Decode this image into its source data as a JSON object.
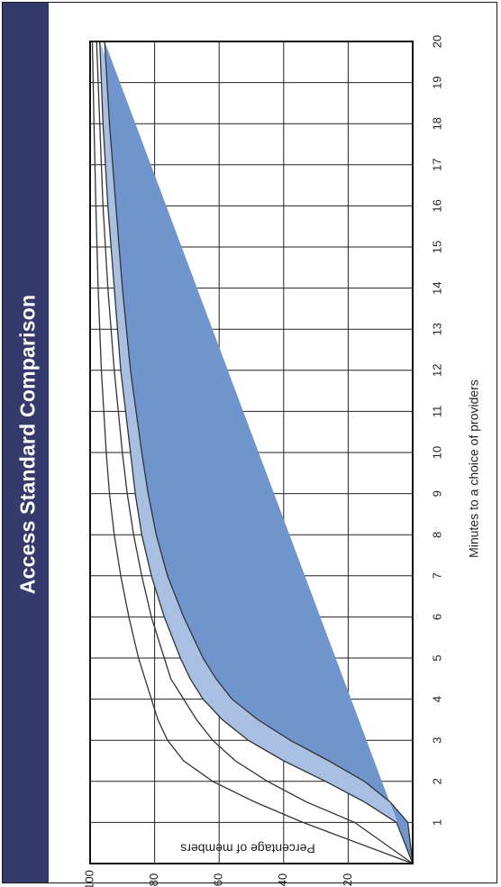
{
  "header": {
    "title": "Access Standard Comparison"
  },
  "colors": {
    "banner": "#343a6b",
    "fill_dark": "#7094cc",
    "fill_light": "#a9c0e2",
    "grid": "#222222",
    "curve": "#333333"
  },
  "chart_data": {
    "type": "area",
    "title": "Access Standard Comparison",
    "xlabel": "Minutes to a choice of providers",
    "ylabel": "Percentage of members",
    "xlim": [
      0,
      20
    ],
    "ylim": [
      0,
      100
    ],
    "x_ticks": [
      "1",
      "2",
      "3",
      "4",
      "5",
      "6",
      "7",
      "8",
      "9",
      "10",
      "11",
      "12",
      "13",
      "14",
      "15",
      "16",
      "17",
      "18",
      "19",
      "20"
    ],
    "y_ticks": [
      "20",
      "40",
      "60",
      "80",
      "100"
    ],
    "grid": "major grid on the left portion of the plot area",
    "series": [
      {
        "fill": "none",
        "x": [
          0,
          1,
          1.5,
          2,
          2.5,
          3,
          3.5,
          4,
          4.5,
          5,
          6,
          7,
          8,
          9,
          10,
          12,
          14,
          16,
          18,
          20
        ],
        "y": [
          0,
          34,
          49,
          62,
          71,
          76,
          79,
          81,
          83,
          85,
          88,
          90.5,
          92.5,
          94,
          95,
          96.5,
          97.5,
          98.2,
          98.8,
          99.3
        ]
      },
      {
        "fill": "none",
        "x": [
          0,
          1,
          1.5,
          2,
          2.5,
          3,
          3.5,
          4,
          4.5,
          5,
          6,
          7,
          8,
          9,
          10,
          12,
          14,
          16,
          18,
          20
        ],
        "y": [
          0,
          18,
          33,
          45,
          55,
          62,
          67,
          71,
          75,
          77,
          81,
          84,
          86.5,
          88.5,
          90,
          92.5,
          94.5,
          96,
          97,
          98
        ]
      },
      {
        "fill": "light",
        "x": [
          0,
          1,
          1.5,
          2,
          2.5,
          3,
          3.5,
          4,
          4.5,
          5,
          6,
          7,
          8,
          9,
          10,
          12,
          14,
          16,
          18,
          20
        ],
        "y": [
          0,
          5,
          15,
          27,
          40,
          51,
          59,
          65,
          69,
          72,
          77,
          81,
          84,
          86,
          87.5,
          90.5,
          92.5,
          94.5,
          96,
          97
        ]
      },
      {
        "fill": "dark",
        "x": [
          0,
          1,
          1.5,
          2,
          2.5,
          3,
          3.5,
          4,
          4.5,
          5,
          6,
          7,
          8,
          9,
          10,
          12,
          14,
          16,
          18,
          20
        ],
        "y": [
          0,
          1.5,
          7,
          15,
          26,
          38,
          48,
          56,
          61,
          65,
          71,
          76,
          79.5,
          82,
          84,
          87.5,
          90,
          92,
          94,
          95.5
        ]
      }
    ]
  }
}
